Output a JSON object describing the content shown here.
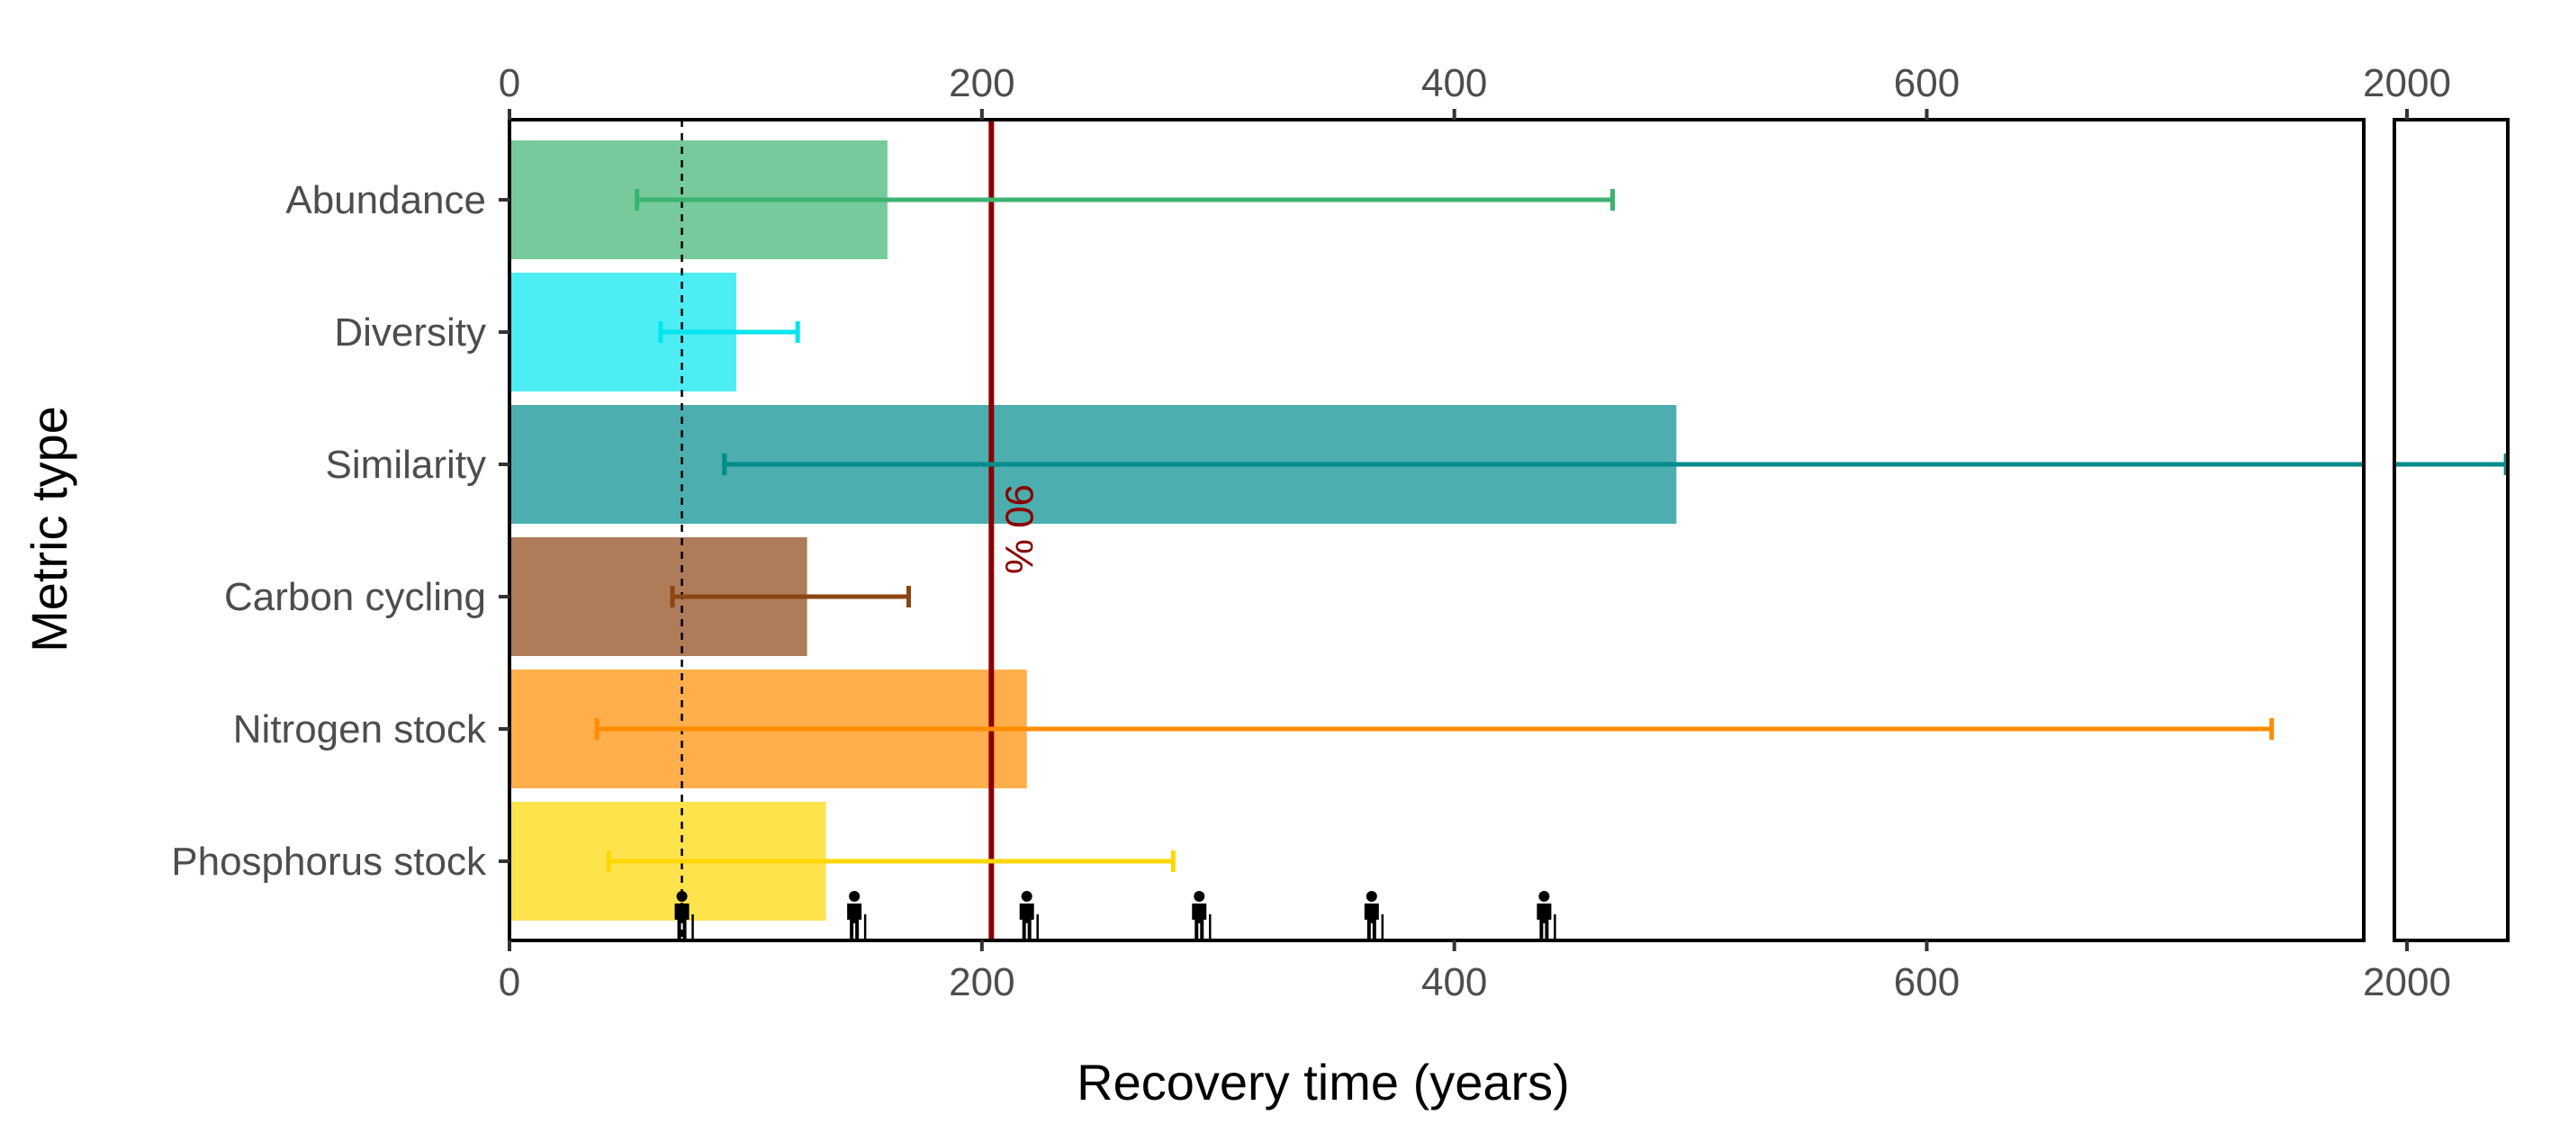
{
  "chart_data": {
    "type": "bar",
    "orientation": "horizontal",
    "xlabel": "Recovery time (years)",
    "ylabel": "Metric type",
    "categories": [
      "Abundance",
      "Diversity",
      "Similarity",
      "Carbon cycling",
      "Nitrogen stock",
      "Phosphorus stock"
    ],
    "values": [
      160,
      96,
      494,
      126,
      219,
      134
    ],
    "error_low": [
      54,
      64,
      91,
      69,
      37,
      42
    ],
    "error_high": [
      467,
      122,
      2118,
      169,
      746,
      281
    ],
    "colors": [
      "#3cb371",
      "#00e5ee",
      "#008b8b",
      "#8b4513",
      "#ff8c00",
      "#ffd700"
    ],
    "xlim_main": [
      0,
      785
    ],
    "xlim_break": [
      1985,
      2120
    ],
    "xticks_main": [
      0,
      200,
      400,
      600
    ],
    "xticks_break": [
      2000
    ],
    "reference_lines": [
      {
        "value": 204,
        "label": "90 %",
        "color": "#8b0000",
        "style": "solid"
      },
      {
        "value": 73,
        "label": "",
        "color": "#000000",
        "style": "dashed"
      }
    ],
    "lifespan_markers": {
      "icon": "elderly-person-icon",
      "values": [
        73,
        146,
        219,
        292,
        365,
        438
      ]
    },
    "grid": false,
    "legend": "none"
  }
}
